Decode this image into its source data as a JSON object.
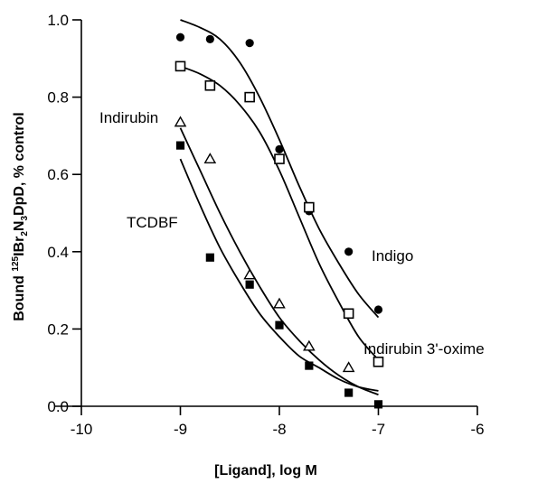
{
  "chart_data": {
    "type": "scatter",
    "title": "",
    "xlabel": "[Ligand], log M",
    "ylabel": {
      "prefix": "Bound ",
      "sup": "125",
      "main": "IBr",
      "sub1": "2",
      "mid": "N",
      "sub2": "3",
      "tail": "DpD, % control"
    },
    "xlim": [
      -10,
      -6
    ],
    "ylim": [
      0,
      1.0
    ],
    "xticks": [
      "-10",
      "-9",
      "-8",
      "-7",
      "-6"
    ],
    "yticks": [
      "0.0",
      "0.2",
      "0.4",
      "0.6",
      "0.8",
      "1.0"
    ],
    "grid": false,
    "legend": "none",
    "series": [
      {
        "name": "Indigo",
        "marker": "filled-circle",
        "x": [
          -9,
          -8.7,
          -8.3,
          -8,
          -7.7,
          -7.3,
          -7
        ],
        "y": [
          0.955,
          0.95,
          0.94,
          0.665,
          0.505,
          0.4,
          0.25
        ],
        "fit_x": [
          -9,
          -8.8,
          -8.6,
          -8.4,
          -8.2,
          -8.0,
          -7.8,
          -7.6,
          -7.4,
          -7.2,
          -7.0
        ],
        "fit_y": [
          1.0,
          0.98,
          0.95,
          0.89,
          0.8,
          0.69,
          0.57,
          0.46,
          0.37,
          0.29,
          0.23
        ]
      },
      {
        "name": "Indirubin 3'-oxime",
        "marker": "open-square",
        "x": [
          -9,
          -8.7,
          -8.3,
          -8,
          -7.7,
          -7.3,
          -7
        ],
        "y": [
          0.88,
          0.83,
          0.8,
          0.64,
          0.515,
          0.24,
          0.115
        ],
        "fit_x": [
          -9,
          -8.8,
          -8.6,
          -8.4,
          -8.2,
          -8.0,
          -7.8,
          -7.6,
          -7.4,
          -7.2,
          -7.0
        ],
        "fit_y": [
          0.88,
          0.86,
          0.83,
          0.78,
          0.71,
          0.61,
          0.49,
          0.37,
          0.27,
          0.18,
          0.12
        ]
      },
      {
        "name": "Indirubin",
        "marker": "open-triangle",
        "x": [
          -9,
          -8.7,
          -8.3,
          -8,
          -7.7,
          -7.3
        ],
        "y": [
          0.735,
          0.64,
          0.34,
          0.265,
          0.155,
          0.1
        ],
        "fit_x": [
          -9,
          -8.8,
          -8.6,
          -8.4,
          -8.2,
          -8.0,
          -7.8,
          -7.6,
          -7.4,
          -7.2,
          -7.0
        ],
        "fit_y": [
          0.72,
          0.61,
          0.5,
          0.4,
          0.31,
          0.23,
          0.17,
          0.12,
          0.08,
          0.05,
          0.03
        ]
      },
      {
        "name": "TCDBF",
        "marker": "filled-square",
        "x": [
          -9,
          -8.7,
          -8.3,
          -8,
          -7.7,
          -7.3,
          -7
        ],
        "y": [
          0.675,
          0.385,
          0.315,
          0.21,
          0.105,
          0.035,
          0.005
        ],
        "fit_x": [
          -9,
          -8.8,
          -8.6,
          -8.4,
          -8.2,
          -8.0,
          -7.8,
          -7.6,
          -7.4,
          -7.2,
          -7.0
        ],
        "fit_y": [
          0.64,
          0.52,
          0.41,
          0.32,
          0.24,
          0.18,
          0.13,
          0.1,
          0.07,
          0.05,
          0.04
        ]
      }
    ],
    "annotations": [
      "Indirubin",
      "TCDBF",
      "Indigo",
      "Indirubin 3'-oxime"
    ]
  }
}
